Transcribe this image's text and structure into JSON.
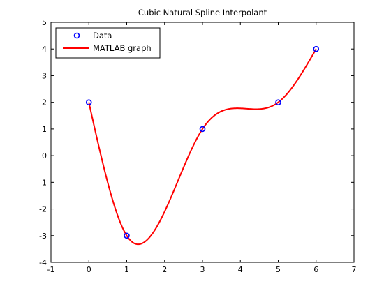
{
  "chart_data": {
    "type": "line",
    "title": "Cubic Natural Spline Interpolant",
    "xlabel": "",
    "ylabel": "",
    "xlim": [
      -1,
      7
    ],
    "ylim": [
      -4,
      5
    ],
    "xticks": [
      "-1",
      "0",
      "1",
      "2",
      "3",
      "4",
      "5",
      "6",
      "7"
    ],
    "yticks": [
      "-4",
      "-3",
      "-2",
      "-1",
      "0",
      "1",
      "2",
      "3",
      "4",
      "5"
    ],
    "grid": false,
    "legend_position": "top-left",
    "series": [
      {
        "name": "Data",
        "kind": "markers",
        "marker": "circle",
        "color": "#0000ff",
        "x": [
          0,
          1,
          3,
          5,
          6
        ],
        "y": [
          2,
          -3,
          1,
          2,
          4
        ]
      },
      {
        "name": "MATLAB graph",
        "kind": "line",
        "color": "#ff0000",
        "x": [
          0,
          1,
          3,
          5,
          6
        ],
        "y": [
          2,
          -3,
          1,
          2,
          4
        ]
      }
    ]
  }
}
